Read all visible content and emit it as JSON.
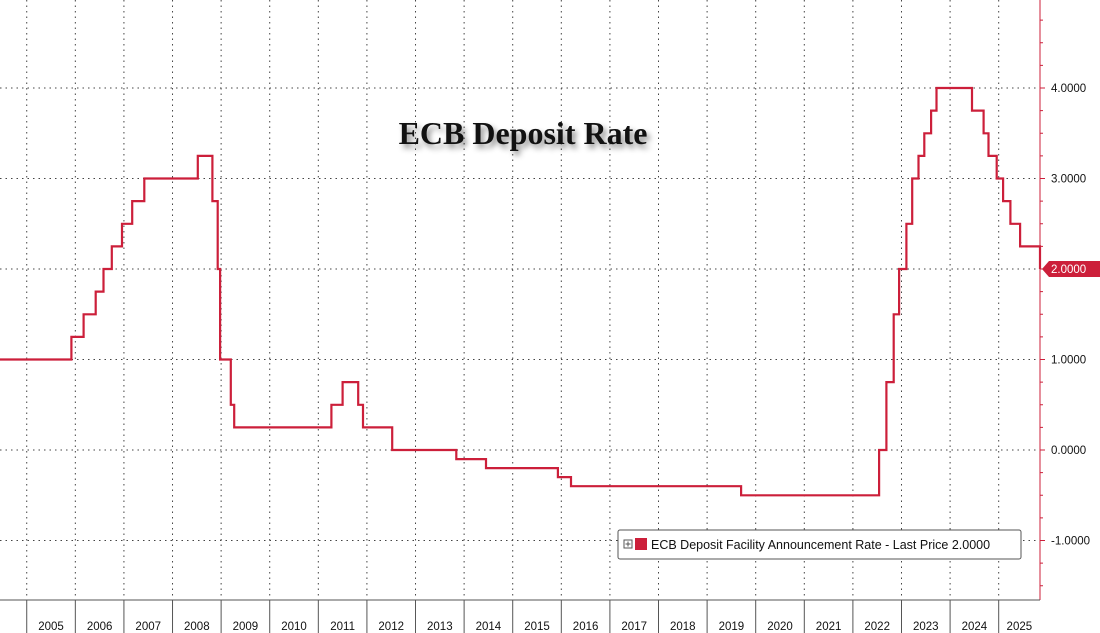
{
  "chart_data": {
    "type": "line",
    "step": true,
    "title": "ECB Deposit Rate",
    "x_tick_labels": [
      "2005",
      "2006",
      "2007",
      "2008",
      "2009",
      "2010",
      "2011",
      "2012",
      "2013",
      "2014",
      "2015",
      "2016",
      "2017",
      "2018",
      "2019",
      "2020",
      "2021",
      "2022",
      "2023",
      "2024",
      "2025"
    ],
    "y_tick_labels": [
      "4.0000",
      "3.0000",
      "2.0000",
      "1.0000",
      "0.0000",
      "-1.0000"
    ],
    "y_tick_values": [
      4,
      3,
      2,
      1,
      0,
      -1
    ],
    "xlim": [
      2004.45,
      2025.85
    ],
    "ylim": [
      -1.7,
      5.0
    ],
    "grid": true,
    "legend": {
      "placement": "bottom-right",
      "entries": [
        {
          "label": "ECB Deposit Facility Announcement Rate - Last Price 2.0000",
          "color": "#cc1f3a"
        }
      ]
    },
    "last_price_label": "2.0000",
    "series": [
      {
        "name": "ECB Deposit Facility Announcement Rate",
        "color": "#cc1f3a",
        "x": [
          2004.45,
          2005.92,
          2006.17,
          2006.42,
          2006.58,
          2006.75,
          2006.96,
          2007.17,
          2007.42,
          2008.52,
          2008.78,
          2008.79,
          2008.82,
          2008.93,
          2008.98,
          2009.2,
          2009.27,
          2009.35,
          2011.27,
          2011.5,
          2011.82,
          2011.92,
          2012.52,
          2013.84,
          2014.45,
          2014.7,
          2015.93,
          2016.2,
          2019.7,
          2022.54,
          2022.69,
          2022.84,
          2022.95,
          2023.1,
          2023.22,
          2023.35,
          2023.47,
          2023.61,
          2023.72,
          2024.45,
          2024.69,
          2024.71,
          2024.79,
          2024.96,
          2025.09,
          2025.24,
          2025.44,
          2025.85
        ],
        "values": [
          1.0,
          1.25,
          1.5,
          1.75,
          2.0,
          2.25,
          2.5,
          2.75,
          3.0,
          3.25,
          3.25,
          3.25,
          2.75,
          2.0,
          1.0,
          0.5,
          0.25,
          0.25,
          0.5,
          0.75,
          0.5,
          0.25,
          0.0,
          -0.1,
          -0.2,
          -0.2,
          -0.3,
          -0.4,
          -0.5,
          0.0,
          0.75,
          1.5,
          2.0,
          2.5,
          3.0,
          3.25,
          3.5,
          3.75,
          4.0,
          3.75,
          3.5,
          3.5,
          3.25,
          3.0,
          2.75,
          2.5,
          2.25,
          2.0
        ]
      }
    ]
  }
}
